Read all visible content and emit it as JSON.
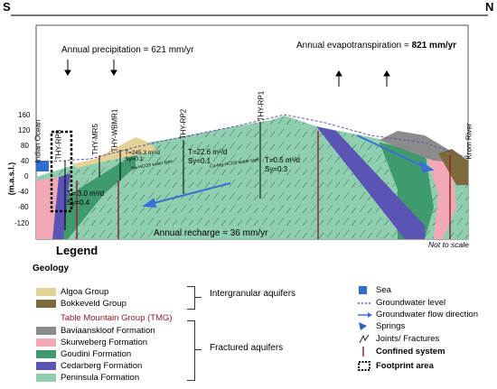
{
  "header": {
    "south": "S",
    "north": "N",
    "precipitation": "Annual precipitation = 621 mm/yr",
    "evapotranspiration_label": "Annual evapotranspiration = ",
    "evapotranspiration_value": "821 mm/yr"
  },
  "axis": {
    "label": "(m.a.s.l.)",
    "ticks": [
      "160",
      "120",
      "80",
      "40",
      "0",
      "-40",
      "-80",
      "-120"
    ]
  },
  "cross_section": {
    "ocean_label": "Indian Ocean",
    "river_label": "Krom River",
    "wells": [
      "THY-RP8",
      "THY-MR5",
      "THY-WBMR1",
      "THY-RP2",
      "THY-RP1"
    ],
    "params": {
      "a_t": "T=245.3 m²/d",
      "a_s": "Sy=0.1",
      "b_t": "T=22.6 m²/d",
      "b_s": "Sy=0.1",
      "c_t": "T=0.5 m²/d",
      "c_s": "Sy=0.3",
      "d_t": "T= 3.0 m²/d",
      "d_s": "Sy=0.4"
    },
    "water_type_1": "Na-HCO3 water type",
    "water_type_2": "Ca-Mg-HCO3 water type",
    "recharge": "Annual recharge = 36 mm/yr",
    "scale_note": "Not to scale"
  },
  "legend": {
    "title": "Legend",
    "geology_title": "Geology",
    "groups": [
      {
        "label": "Algoa Group",
        "color": "#e3d19a"
      },
      {
        "label": "Bokkeveld Group",
        "color": "#7c6a3a"
      }
    ],
    "tmg_label": "Table Mountain Group (TMG)",
    "formations": [
      {
        "label": "Baviaanskloof Formation",
        "color": "#8c8c8c"
      },
      {
        "label": "Skurweberg Formation",
        "color": "#f2a9b5"
      },
      {
        "label": "Goudini Formation",
        "color": "#3f9a6d"
      },
      {
        "label": "Cedarberg Formation",
        "color": "#5a55b5"
      },
      {
        "label": "Peninsula Formation",
        "color": "#8fcfb0"
      }
    ],
    "intergranular": "Intergranular aquifers",
    "fractured": "Fractured aquifers",
    "symbols": [
      {
        "label": "Sea",
        "icon": "sea-square",
        "color": "#2f6fcf"
      },
      {
        "label": "Groundwater level",
        "icon": "dashed-line",
        "color": "#6a4fb0"
      },
      {
        "label": "Groundwater flow direction",
        "icon": "arrow",
        "color": "#3a6fd8"
      },
      {
        "label": "Springs",
        "icon": "spring-triangle",
        "color": "#2f5fc0"
      },
      {
        "label": "Joints/ Fractures",
        "icon": "fracture",
        "color": "#222222"
      },
      {
        "label": "Confined system",
        "icon": "bar",
        "color": "#8a2a2a"
      },
      {
        "label": "Footprint area",
        "icon": "dotted-box",
        "color": "#000000"
      }
    ]
  }
}
